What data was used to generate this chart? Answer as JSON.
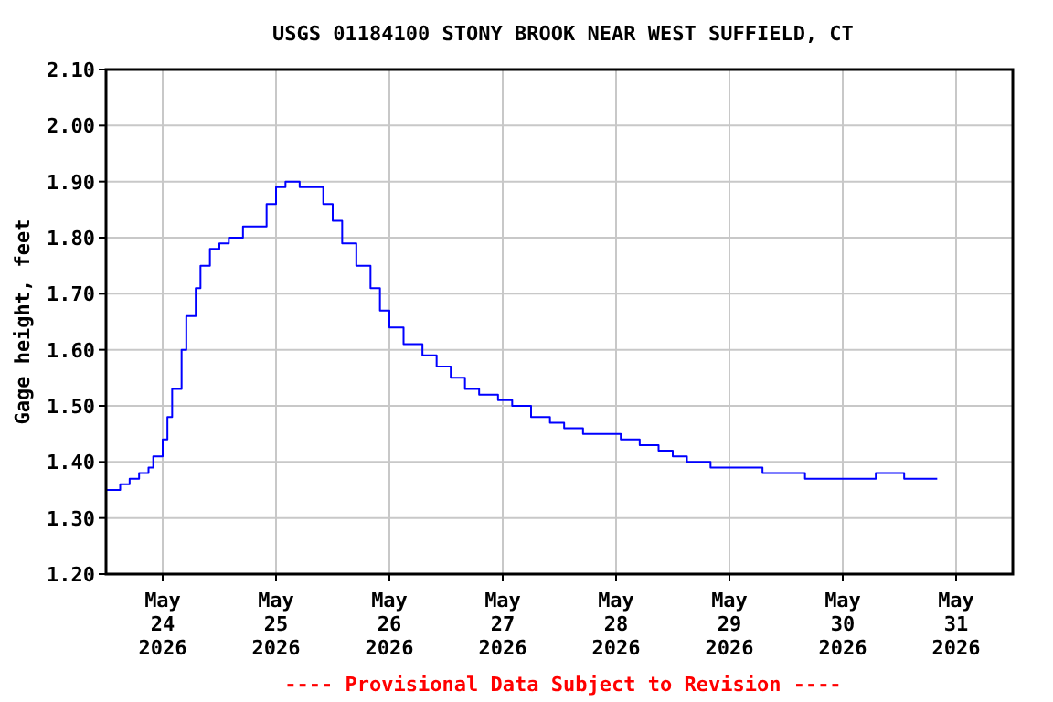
{
  "chart_data": {
    "type": "step",
    "title": "USGS 01184100 STONY BROOK NEAR WEST SUFFIELD, CT",
    "ylabel": "Gage height, feet",
    "annotations": [
      "---- Provisional Data Subject to Revision ----"
    ],
    "x": [
      "2026-05-23T12:00",
      "2026-05-23T15:00",
      "2026-05-23T17:00",
      "2026-05-23T19:00",
      "2026-05-23T21:00",
      "2026-05-23T22:00",
      "2026-05-24T00:00",
      "2026-05-24T01:00",
      "2026-05-24T02:00",
      "2026-05-24T04:00",
      "2026-05-24T05:00",
      "2026-05-24T07:00",
      "2026-05-24T08:00",
      "2026-05-24T10:00",
      "2026-05-24T12:00",
      "2026-05-24T14:00",
      "2026-05-24T17:00",
      "2026-05-24T20:00",
      "2026-05-24T22:00",
      "2026-05-25T00:00",
      "2026-05-25T02:00",
      "2026-05-25T05:00",
      "2026-05-25T07:00",
      "2026-05-25T10:00",
      "2026-05-25T12:00",
      "2026-05-25T14:00",
      "2026-05-25T17:00",
      "2026-05-25T20:00",
      "2026-05-25T22:00",
      "2026-05-26T00:00",
      "2026-05-26T03:00",
      "2026-05-26T07:00",
      "2026-05-26T10:00",
      "2026-05-26T13:00",
      "2026-05-26T16:00",
      "2026-05-26T19:00",
      "2026-05-26T23:00",
      "2026-05-27T02:00",
      "2026-05-27T06:00",
      "2026-05-27T10:00",
      "2026-05-27T13:00",
      "2026-05-27T17:00",
      "2026-05-27T21:00",
      "2026-05-28T01:00",
      "2026-05-28T05:00",
      "2026-05-28T09:00",
      "2026-05-28T12:00",
      "2026-05-28T15:00",
      "2026-05-28T20:00",
      "2026-05-29T02:00",
      "2026-05-29T07:00",
      "2026-05-29T16:00",
      "2026-05-30T04:00",
      "2026-05-30T07:00",
      "2026-05-30T13:00",
      "2026-05-30T20:00"
    ],
    "series": [
      {
        "color": "#0000ff",
        "values": [
          1.35,
          1.36,
          1.37,
          1.38,
          1.39,
          1.41,
          1.44,
          1.48,
          1.53,
          1.6,
          1.66,
          1.71,
          1.75,
          1.78,
          1.79,
          1.8,
          1.82,
          1.82,
          1.86,
          1.89,
          1.9,
          1.89,
          1.89,
          1.86,
          1.83,
          1.79,
          1.75,
          1.71,
          1.67,
          1.64,
          1.61,
          1.59,
          1.57,
          1.55,
          1.53,
          1.52,
          1.51,
          1.5,
          1.48,
          1.47,
          1.46,
          1.45,
          1.45,
          1.44,
          1.43,
          1.42,
          1.41,
          1.4,
          1.39,
          1.39,
          1.38,
          1.37,
          1.37,
          1.38,
          1.37,
          1.37
        ]
      }
    ],
    "xlim": [
      "2026-05-23T12:00",
      "2026-05-31T12:00"
    ],
    "xticks": [
      {
        "value": "2026-05-24",
        "label": "May\n24\n2026"
      },
      {
        "value": "2026-05-25",
        "label": "May\n25\n2026"
      },
      {
        "value": "2026-05-26",
        "label": "May\n26\n2026"
      },
      {
        "value": "2026-05-27",
        "label": "May\n27\n2026"
      },
      {
        "value": "2026-05-28",
        "label": "May\n28\n2026"
      },
      {
        "value": "2026-05-29",
        "label": "May\n29\n2026"
      },
      {
        "value": "2026-05-30",
        "label": "May\n30\n2026"
      },
      {
        "value": "2026-05-31",
        "label": "May\n31\n2026"
      }
    ],
    "ylim": [
      1.2,
      2.1
    ],
    "yticks": [
      {
        "value": 1.2,
        "label": "1.20"
      },
      {
        "value": 1.3,
        "label": "1.30"
      },
      {
        "value": 1.4,
        "label": "1.40"
      },
      {
        "value": 1.5,
        "label": "1.50"
      },
      {
        "value": 1.6,
        "label": "1.60"
      },
      {
        "value": 1.7,
        "label": "1.70"
      },
      {
        "value": 1.8,
        "label": "1.80"
      },
      {
        "value": 1.9,
        "label": "1.90"
      },
      {
        "value": 2.0,
        "label": "2.00"
      },
      {
        "value": 2.1,
        "label": "2.10"
      }
    ],
    "grid": true,
    "marker": "none",
    "line_style": "solid"
  }
}
